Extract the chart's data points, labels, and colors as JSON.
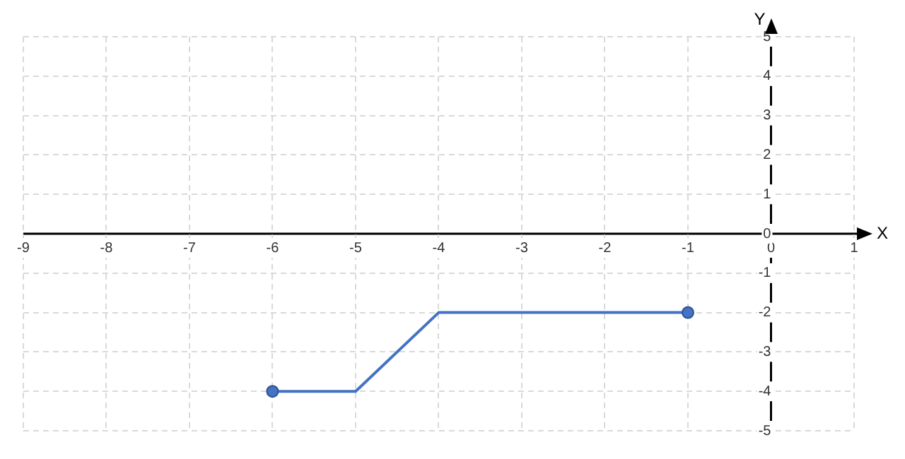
{
  "chart_data": {
    "type": "line",
    "xlabel": "X",
    "ylabel": "Y",
    "series": [
      {
        "type": "line",
        "color": "#4472c4",
        "x": [
          -6,
          -5,
          -4,
          -1
        ],
        "values": [
          -4,
          -4,
          -2,
          -2
        ],
        "marker": "none"
      },
      {
        "type": "scatter",
        "color": "#4472c4",
        "x": [
          -6,
          -1
        ],
        "values": [
          -4,
          -2
        ],
        "marker": "circle"
      }
    ],
    "xlim": [
      -9,
      1
    ],
    "ylim": [
      -5,
      5
    ],
    "xticks": [
      -9,
      -8,
      -7,
      -6,
      -5,
      -4,
      -3,
      -2,
      -1,
      0,
      1
    ],
    "yticks": [
      -5,
      -4,
      -3,
      -2,
      -1,
      0,
      1,
      2,
      3,
      4,
      5
    ],
    "grid": true,
    "legend": false
  }
}
